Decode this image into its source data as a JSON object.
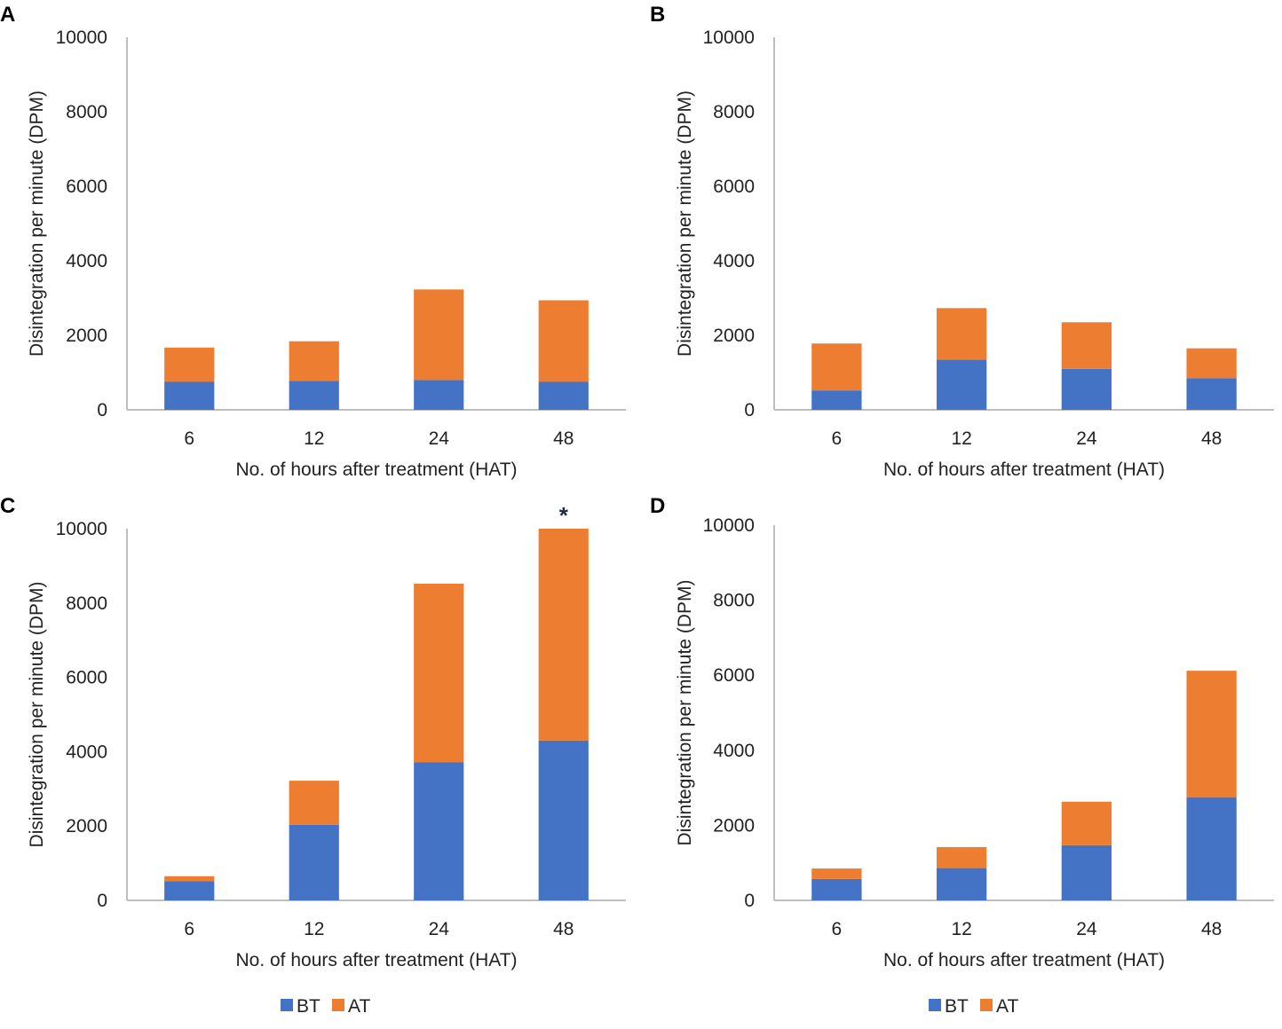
{
  "figure": {
    "colors": {
      "BT": "#4472c4",
      "AT": "#ed7d31",
      "axis": "#bfbfbf"
    },
    "legend": [
      {
        "key": "BT",
        "label": "BT"
      },
      {
        "key": "AT",
        "label": "AT"
      }
    ]
  },
  "chart_data": [
    {
      "panel": "A",
      "type": "bar",
      "stacked": true,
      "categories": [
        "6",
        "12",
        "24",
        "48"
      ],
      "series": [
        {
          "name": "BT",
          "values": [
            750,
            780,
            800,
            750
          ]
        },
        {
          "name": "AT",
          "values": [
            920,
            1060,
            2430,
            2190
          ]
        }
      ],
      "xlabel": "No. of hours after treatment (HAT)",
      "ylabel": "Disintegration per minute (DPM)",
      "ylim": [
        0,
        10000
      ],
      "yticks": [
        "0",
        "2000",
        "4000",
        "6000",
        "8000",
        "10000"
      ],
      "annotations": []
    },
    {
      "panel": "B",
      "type": "bar",
      "stacked": true,
      "categories": [
        "6",
        "12",
        "24",
        "48"
      ],
      "series": [
        {
          "name": "BT",
          "values": [
            520,
            1350,
            1100,
            850
          ]
        },
        {
          "name": "AT",
          "values": [
            1260,
            1380,
            1250,
            800
          ]
        }
      ],
      "xlabel": "No. of hours after treatment (HAT)",
      "ylabel": "Disintegration per minute (DPM)",
      "ylim": [
        0,
        10000
      ],
      "yticks": [
        "0",
        "2000",
        "4000",
        "6000",
        "8000",
        "10000"
      ],
      "annotations": []
    },
    {
      "panel": "C",
      "type": "bar",
      "stacked": true,
      "categories": [
        "6",
        "12",
        "24",
        "48"
      ],
      "series": [
        {
          "name": "BT",
          "values": [
            520,
            2030,
            3720,
            4300
          ]
        },
        {
          "name": "AT",
          "values": [
            130,
            1190,
            4800,
            5700
          ]
        }
      ],
      "xlabel": "No. of hours after treatment (HAT)",
      "ylabel": "Disintegration per minute (DPM)",
      "ylim": [
        0,
        10000
      ],
      "yticks": [
        "0",
        "2000",
        "4000",
        "6000",
        "8000",
        "10000"
      ],
      "annotations": [
        {
          "category": "48",
          "text": "*"
        }
      ]
    },
    {
      "panel": "D",
      "type": "bar",
      "stacked": true,
      "categories": [
        "6",
        "12",
        "24",
        "48"
      ],
      "series": [
        {
          "name": "BT",
          "values": [
            570,
            860,
            1470,
            2750
          ]
        },
        {
          "name": "AT",
          "values": [
            280,
            560,
            1160,
            3370
          ]
        }
      ],
      "xlabel": "No. of hours after treatment (HAT)",
      "ylabel": "Disintegration per minute (DPM)",
      "ylim": [
        0,
        10000
      ],
      "yticks": [
        "0",
        "2000",
        "4000",
        "6000",
        "8000",
        "10000"
      ],
      "annotations": []
    }
  ]
}
